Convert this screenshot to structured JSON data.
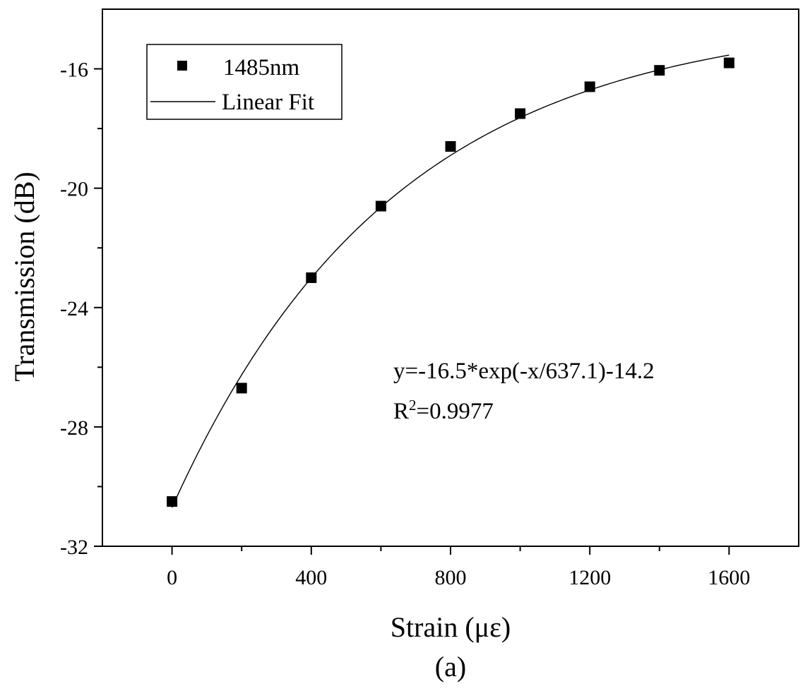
{
  "chart_data": {
    "type": "scatter",
    "xlabel": "Strain (με)",
    "ylabel": "Transmission (dB)",
    "caption": "(a)",
    "xlim": [
      -200,
      1800
    ],
    "ylim": [
      -32,
      -14
    ],
    "x_ticks": [
      0,
      400,
      800,
      1200,
      1600
    ],
    "y_ticks": [
      -16,
      -20,
      -24,
      -28,
      -32
    ],
    "x_tick_labels": [
      "0",
      "400",
      "800",
      "1200",
      "1600"
    ],
    "y_tick_labels": [
      "-16",
      "-20",
      "-24",
      "-28",
      "-32"
    ],
    "grid": false,
    "legend_position": "top-left",
    "series": [
      {
        "name": "1485nm",
        "marker": "square",
        "color": "#000000",
        "x": [
          0,
          200,
          400,
          600,
          800,
          1000,
          1200,
          1400,
          1600
        ],
        "y": [
          -30.5,
          -26.7,
          -23.0,
          -20.6,
          -18.6,
          -17.5,
          -16.6,
          -16.05,
          -15.8
        ]
      }
    ],
    "fit": {
      "name": "Linear Fit",
      "color": "#000000",
      "amplitude": -16.5,
      "decay": 637.1,
      "offset": -14.2,
      "x_range": [
        0,
        1600
      ]
    },
    "annotation": {
      "equation_text": "y=-16.5*exp(-x/637.1)-14.2",
      "r2_prefix": "R",
      "r2_superscript": "2",
      "r2_value": "=0.9977"
    }
  }
}
